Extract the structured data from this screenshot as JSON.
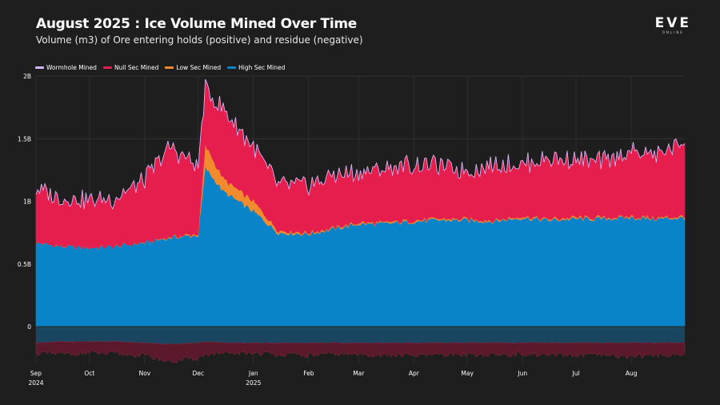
{
  "header": {
    "title": "August 2025 : Ice Volume Mined Over Time",
    "subtitle": "Volume (m3) of Ore entering holds (positive) and residue (negative)"
  },
  "logo": {
    "main": "EVE",
    "sub": "ONLINE"
  },
  "chart_data": {
    "type": "area",
    "title": "August 2025 : Ice Volume Mined Over Time",
    "subtitle": "Volume (m3) of Ore entering holds (positive) and residue (negative)",
    "stacked": true,
    "grid": true,
    "legend_position": "top-left",
    "x_range": [
      "2024-09-01",
      "2025-08-31"
    ],
    "ylim": [
      -0.3,
      2.0
    ],
    "y_ticks": [
      {
        "value": 2.0,
        "label": "2B"
      },
      {
        "value": 1.5,
        "label": "1.5B"
      },
      {
        "value": 1.0,
        "label": "1B"
      },
      {
        "value": 0.5,
        "label": "0.5B"
      },
      {
        "value": 0.0,
        "label": "0"
      }
    ],
    "x_ticks": [
      {
        "date": "2024-09-01",
        "label": "Sep",
        "sublabel": "2024"
      },
      {
        "date": "2024-10-01",
        "label": "Oct",
        "sublabel": ""
      },
      {
        "date": "2024-11-01",
        "label": "Nov",
        "sublabel": ""
      },
      {
        "date": "2024-12-01",
        "label": "Dec",
        "sublabel": ""
      },
      {
        "date": "2025-01-01",
        "label": "Jan",
        "sublabel": "2025"
      },
      {
        "date": "2025-02-01",
        "label": "Feb",
        "sublabel": ""
      },
      {
        "date": "2025-03-01",
        "label": "Mar",
        "sublabel": ""
      },
      {
        "date": "2025-04-01",
        "label": "Apr",
        "sublabel": ""
      },
      {
        "date": "2025-05-01",
        "label": "May",
        "sublabel": ""
      },
      {
        "date": "2025-06-01",
        "label": "Jun",
        "sublabel": ""
      },
      {
        "date": "2025-07-01",
        "label": "Jul",
        "sublabel": ""
      },
      {
        "date": "2025-08-01",
        "label": "Aug",
        "sublabel": ""
      }
    ],
    "x": [
      "2024-09-01",
      "2024-09-15",
      "2024-10-01",
      "2024-10-15",
      "2024-11-01",
      "2024-11-15",
      "2024-12-01",
      "2024-12-05",
      "2024-12-15",
      "2025-01-01",
      "2025-01-15",
      "2025-02-01",
      "2025-02-15",
      "2025-03-01",
      "2025-03-15",
      "2025-04-01",
      "2025-04-15",
      "2025-05-01",
      "2025-05-15",
      "2025-06-01",
      "2025-06-15",
      "2025-07-01",
      "2025-07-15",
      "2025-08-01",
      "2025-08-15",
      "2025-08-31"
    ],
    "series": [
      {
        "name": "High Sec Mined",
        "color": "#0a84c8",
        "values": [
          0.67,
          0.64,
          0.63,
          0.64,
          0.67,
          0.71,
          0.73,
          1.27,
          1.08,
          0.92,
          0.75,
          0.74,
          0.78,
          0.82,
          0.82,
          0.84,
          0.85,
          0.85,
          0.84,
          0.87,
          0.85,
          0.86,
          0.86,
          0.87,
          0.86,
          0.87
        ]
      },
      {
        "name": "Low Sec Mined",
        "color": "#f28a2e",
        "values": [
          0.0,
          0.0,
          0.0,
          0.0,
          0.0,
          0.005,
          0.01,
          0.18,
          0.1,
          0.08,
          0.02,
          0.01,
          0.01,
          0.01,
          0.01,
          0.01,
          0.01,
          0.01,
          0.01,
          0.01,
          0.01,
          0.01,
          0.01,
          0.01,
          0.01,
          0.01
        ]
      },
      {
        "name": "Null Sec Mined",
        "color": "#e61e4e",
        "values": [
          0.43,
          0.38,
          0.38,
          0.38,
          0.5,
          0.72,
          0.54,
          0.45,
          0.55,
          0.43,
          0.37,
          0.38,
          0.42,
          0.4,
          0.42,
          0.45,
          0.42,
          0.38,
          0.45,
          0.42,
          0.48,
          0.46,
          0.44,
          0.52,
          0.5,
          0.6
        ]
      },
      {
        "name": "Wormhole Mined",
        "color": "#d3b4f0",
        "values": [
          0.0,
          0.0,
          0.0,
          0.0,
          0.0,
          0.0,
          0.0,
          0.0,
          0.0,
          0.0,
          0.0,
          0.0,
          0.0,
          0.0,
          0.0,
          0.0,
          0.0,
          0.0,
          0.0,
          0.0,
          0.0,
          0.0,
          0.0,
          0.0,
          0.0,
          0.0
        ]
      }
    ],
    "residue": {
      "high_sec": [
        -0.13,
        -0.12,
        -0.12,
        -0.12,
        -0.13,
        -0.14,
        -0.13,
        -0.12,
        -0.13,
        -0.13,
        -0.13,
        -0.13,
        -0.13,
        -0.13,
        -0.13,
        -0.13,
        -0.13,
        -0.13,
        -0.13,
        -0.13,
        -0.13,
        -0.13,
        -0.13,
        -0.13,
        -0.13,
        -0.13
      ],
      "null_sec": [
        -0.08,
        -0.1,
        -0.09,
        -0.1,
        -0.1,
        -0.14,
        -0.12,
        -0.1,
        -0.09,
        -0.08,
        -0.09,
        -0.1,
        -0.09,
        -0.09,
        -0.1,
        -0.1,
        -0.1,
        -0.09,
        -0.1,
        -0.09,
        -0.1,
        -0.1,
        -0.1,
        -0.11,
        -0.1,
        -0.09
      ]
    }
  }
}
